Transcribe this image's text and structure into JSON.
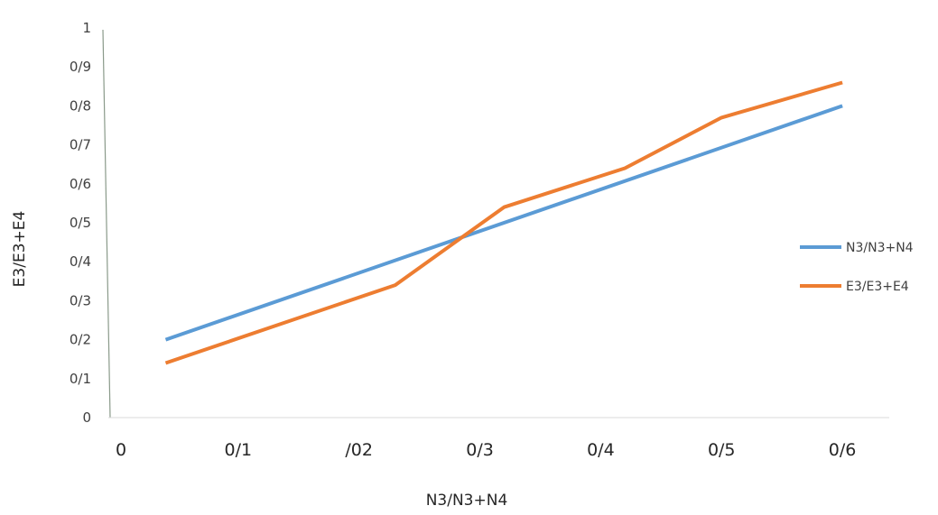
{
  "chart_data": {
    "type": "line",
    "title": "",
    "xlabel": "N3/N3+N4",
    "ylabel": "E3/E3+E4",
    "x_tick_labels": [
      "0",
      "0/1",
      "/02",
      "0/3",
      "0/4",
      "0/5",
      "0/6"
    ],
    "y_tick_labels": [
      "0",
      "0/1",
      "0/2",
      "0/3",
      "0/4",
      "0/5",
      "0/6",
      "0/7",
      "0/8",
      "0/9",
      "1"
    ],
    "ylim": [
      0,
      1
    ],
    "xlim": [
      0,
      0.65
    ],
    "grid": false,
    "legend_position": "right",
    "series": [
      {
        "name": "N3/N3+N4",
        "color": "#5B9BD5",
        "x": [
          0.04,
          0.6
        ],
        "y": [
          0.2,
          0.8
        ]
      },
      {
        "name": "E3/E3+E4",
        "color": "#ED7D31",
        "x": [
          0.04,
          0.23,
          0.32,
          0.42,
          0.5,
          0.6
        ],
        "y": [
          0.14,
          0.34,
          0.54,
          0.64,
          0.77,
          0.86
        ]
      }
    ]
  }
}
